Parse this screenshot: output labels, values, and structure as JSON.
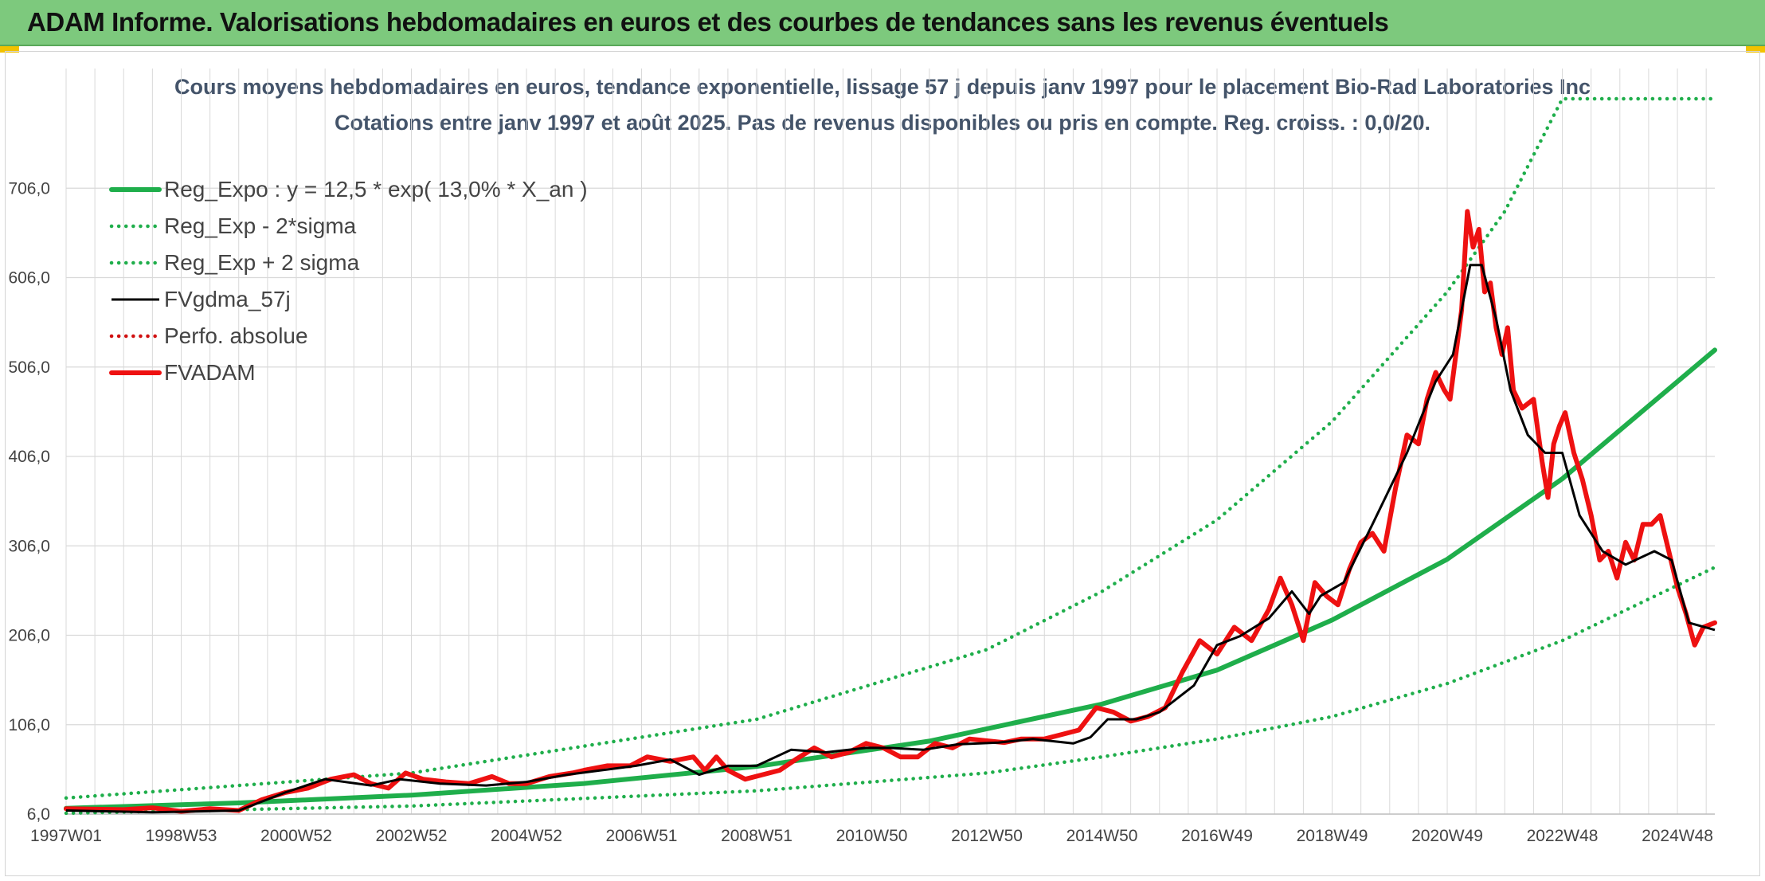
{
  "header": {
    "title": "ADAM Informe. Valorisations hebdomadaires en euros et des courbes de tendances sans les revenus éventuels"
  },
  "colors": {
    "regression": "#1fae4b",
    "sigma_bands": "#1fae4b",
    "smoothed": "#000000",
    "absolute_perf": "#d01010",
    "price": "#ee1111",
    "grid": "#d9d9d9"
  },
  "chart_data": {
    "type": "line",
    "title": "Cours moyens hebdomadaires en euros, tendance exponentielle, lissage 57 j depuis janv 1997 pour le placement Bio-Rad Laboratories Inc",
    "subtitle": "Cotations entre janv 1997 et août 2025. Pas de revenus disponibles ou pris en compte. Reg. croiss. : 0,0/20.",
    "xlabel": "",
    "ylabel": "",
    "x_range": [
      1997.0,
      2025.65
    ],
    "ylim": [
      6,
      806
    ],
    "y_ticks": [
      6,
      106,
      206,
      306,
      406,
      506,
      606,
      706
    ],
    "y_tick_labels": [
      "6,0",
      "106,0",
      "206,0",
      "306,0",
      "406,0",
      "506,0",
      "606,0",
      "706,0"
    ],
    "x_ticks": [
      1997.0,
      1999.0,
      2001.0,
      2003.0,
      2005.0,
      2007.0,
      2009.0,
      2011.0,
      2013.0,
      2015.0,
      2017.0,
      2019.0,
      2021.0,
      2023.0,
      2025.0
    ],
    "x_tick_labels": [
      "1997W01",
      "1998W53",
      "2000W52",
      "2002W52",
      "2004W52",
      "2006W51",
      "2008W51",
      "2010W50",
      "2012W50",
      "2014W50",
      "2016W49",
      "2018W49",
      "2020W49",
      "2022W48",
      "2024W48"
    ],
    "grid": true,
    "legend_position": "top-left",
    "series": [
      {
        "name": "Reg_Expo : y = 12,5 * exp( 13,0% *  X_an )",
        "style": "solid-thick",
        "color": "#1fae4b",
        "x": [
          1997.0,
          2000.0,
          2003.0,
          2006.0,
          2009.0,
          2012.0,
          2015.0,
          2017.0,
          2019.0,
          2021.0,
          2023.0,
          2025.65
        ],
        "y": [
          12.5,
          18.5,
          27.2,
          40.2,
          59.3,
          87.6,
          129,
          167,
          223,
          291,
          381,
          525
        ]
      },
      {
        "name": "Reg_Exp - 2*sigma",
        "style": "dotted",
        "color": "#1fae4b",
        "x": [
          1997.0,
          2003.0,
          2009.0,
          2013.0,
          2015.0,
          2017.0,
          2019.0,
          2021.0,
          2023.0,
          2025.65
        ],
        "y": [
          7,
          15,
          32,
          52,
          70,
          90,
          115,
          152,
          200,
          282
        ]
      },
      {
        "name": "Reg_Exp + 2 sigma",
        "style": "dotted",
        "color": "#1fae4b",
        "x": [
          1997.0,
          2003.0,
          2009.0,
          2013.0,
          2015.0,
          2017.0,
          2019.0,
          2021.0,
          2022.0,
          2023.0,
          2025.65
        ],
        "y": [
          24,
          52,
          112,
          190,
          255,
          335,
          445,
          590,
          680,
          806,
          806
        ]
      },
      {
        "name": "FVgdma_57j",
        "style": "solid",
        "color": "#000000",
        "x": [
          1997.0,
          1998.5,
          2000.0,
          2000.8,
          2001.5,
          2002.3,
          2002.8,
          2003.5,
          2004.3,
          2005.0,
          2005.7,
          2006.3,
          2006.9,
          2007.5,
          2008.0,
          2008.5,
          2009.0,
          2009.6,
          2010.2,
          2010.9,
          2011.3,
          2011.9,
          2012.5,
          2013.2,
          2013.8,
          2014.5,
          2014.8,
          2015.1,
          2015.6,
          2016.0,
          2016.6,
          2017.0,
          2017.4,
          2017.9,
          2018.3,
          2018.6,
          2018.8,
          2019.2,
          2019.7,
          2020.3,
          2020.8,
          2021.1,
          2021.4,
          2021.6,
          2021.85,
          2022.1,
          2022.4,
          2022.7,
          2023.0,
          2023.3,
          2023.7,
          2024.1,
          2024.6,
          2024.9,
          2025.2,
          2025.65
        ],
        "y": [
          10,
          8,
          10,
          30,
          45,
          38,
          45,
          40,
          38,
          42,
          50,
          55,
          60,
          67,
          50,
          60,
          60,
          78,
          75,
          80,
          80,
          78,
          84,
          86,
          90,
          85,
          92,
          112,
          112,
          120,
          150,
          195,
          205,
          225,
          255,
          230,
          250,
          265,
          330,
          410,
          490,
          520,
          620,
          620,
          560,
          480,
          430,
          410,
          410,
          340,
          300,
          285,
          300,
          290,
          220,
          212
        ]
      },
      {
        "name": "Perfo. absolue",
        "style": "dotted",
        "color": "#d01010",
        "x": [],
        "y": []
      },
      {
        "name": "FVADAM",
        "style": "solid-thick",
        "color": "#ee1111",
        "x": [
          1997.0,
          1998.0,
          1998.5,
          1999.0,
          1999.5,
          2000.0,
          2000.4,
          2000.8,
          2001.2,
          2001.6,
          2002.0,
          2002.3,
          2002.6,
          2002.9,
          2003.2,
          2003.6,
          2004.0,
          2004.4,
          2004.7,
          2005.0,
          2005.4,
          2005.8,
          2006.0,
          2006.4,
          2006.8,
          2007.1,
          2007.5,
          2007.9,
          2008.1,
          2008.3,
          2008.5,
          2008.8,
          2009.1,
          2009.4,
          2009.7,
          2010.0,
          2010.3,
          2010.6,
          2010.9,
          2011.2,
          2011.5,
          2011.8,
          2012.1,
          2012.4,
          2012.7,
          2013.0,
          2013.3,
          2013.6,
          2014.0,
          2014.3,
          2014.6,
          2014.9,
          2015.2,
          2015.5,
          2015.8,
          2016.1,
          2016.4,
          2016.7,
          2017.0,
          2017.3,
          2017.6,
          2017.9,
          2018.1,
          2018.3,
          2018.5,
          2018.7,
          2018.9,
          2019.1,
          2019.3,
          2019.5,
          2019.7,
          2019.9,
          2020.1,
          2020.3,
          2020.5,
          2020.65,
          2020.8,
          2020.95,
          2021.05,
          2021.15,
          2021.25,
          2021.35,
          2021.45,
          2021.55,
          2021.65,
          2021.75,
          2021.85,
          2021.95,
          2022.05,
          2022.15,
          2022.3,
          2022.5,
          2022.65,
          2022.75,
          2022.85,
          2022.95,
          2023.05,
          2023.2,
          2023.35,
          2023.5,
          2023.65,
          2023.8,
          2023.95,
          2024.1,
          2024.25,
          2024.4,
          2024.55,
          2024.7,
          2024.85,
          2025.0,
          2025.15,
          2025.3,
          2025.45,
          2025.65
        ],
        "y": [
          12,
          11,
          13,
          9,
          12,
          10,
          22,
          30,
          35,
          45,
          50,
          40,
          35,
          52,
          45,
          42,
          40,
          48,
          40,
          40,
          48,
          52,
          55,
          60,
          60,
          70,
          65,
          70,
          55,
          70,
          55,
          45,
          50,
          55,
          68,
          80,
          70,
          75,
          85,
          80,
          70,
          70,
          85,
          80,
          90,
          88,
          86,
          90,
          90,
          95,
          100,
          125,
          120,
          110,
          115,
          125,
          165,
          200,
          185,
          215,
          200,
          235,
          270,
          240,
          200,
          265,
          250,
          240,
          280,
          310,
          320,
          300,
          370,
          430,
          420,
          470,
          500,
          480,
          470,
          520,
          570,
          680,
          640,
          660,
          590,
          600,
          550,
          520,
          550,
          480,
          460,
          470,
          400,
          360,
          420,
          440,
          455,
          410,
          380,
          340,
          290,
          300,
          270,
          310,
          290,
          330,
          330,
          340,
          300,
          260,
          230,
          195,
          215,
          220
        ]
      }
    ]
  }
}
